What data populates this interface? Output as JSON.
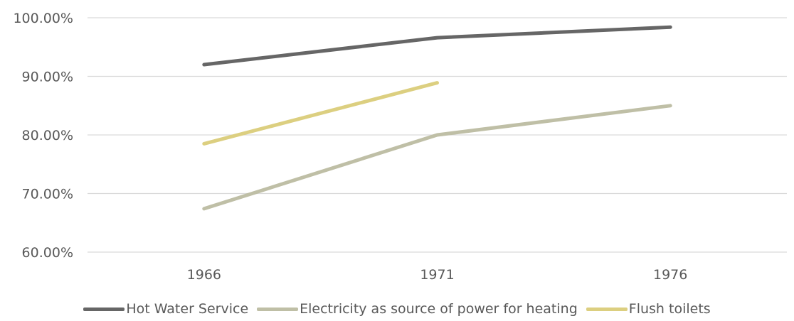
{
  "chart_data": {
    "type": "line",
    "title": "",
    "xlabel": "",
    "ylabel": "",
    "categories": [
      "1966",
      "1971",
      "1976"
    ],
    "ylim": [
      0.6,
      1.0
    ],
    "yticks": [
      "60.00%",
      "70.00%",
      "80.00%",
      "90.00%",
      "100.00%"
    ],
    "ytick_values": [
      0.6,
      0.7,
      0.8,
      0.9,
      1.0
    ],
    "grid": true,
    "legend_position": "bottom",
    "series": [
      {
        "name": "Hot Water Service",
        "color": "#666666",
        "values": [
          0.92,
          0.966,
          0.984
        ]
      },
      {
        "name": "Electricity as source of power for heating",
        "color": "#bfbfa6",
        "values": [
          0.674,
          0.8,
          0.85
        ]
      },
      {
        "name": "Flush toilets",
        "color": "#dccf80",
        "values": [
          0.785,
          0.889,
          null
        ]
      }
    ]
  }
}
